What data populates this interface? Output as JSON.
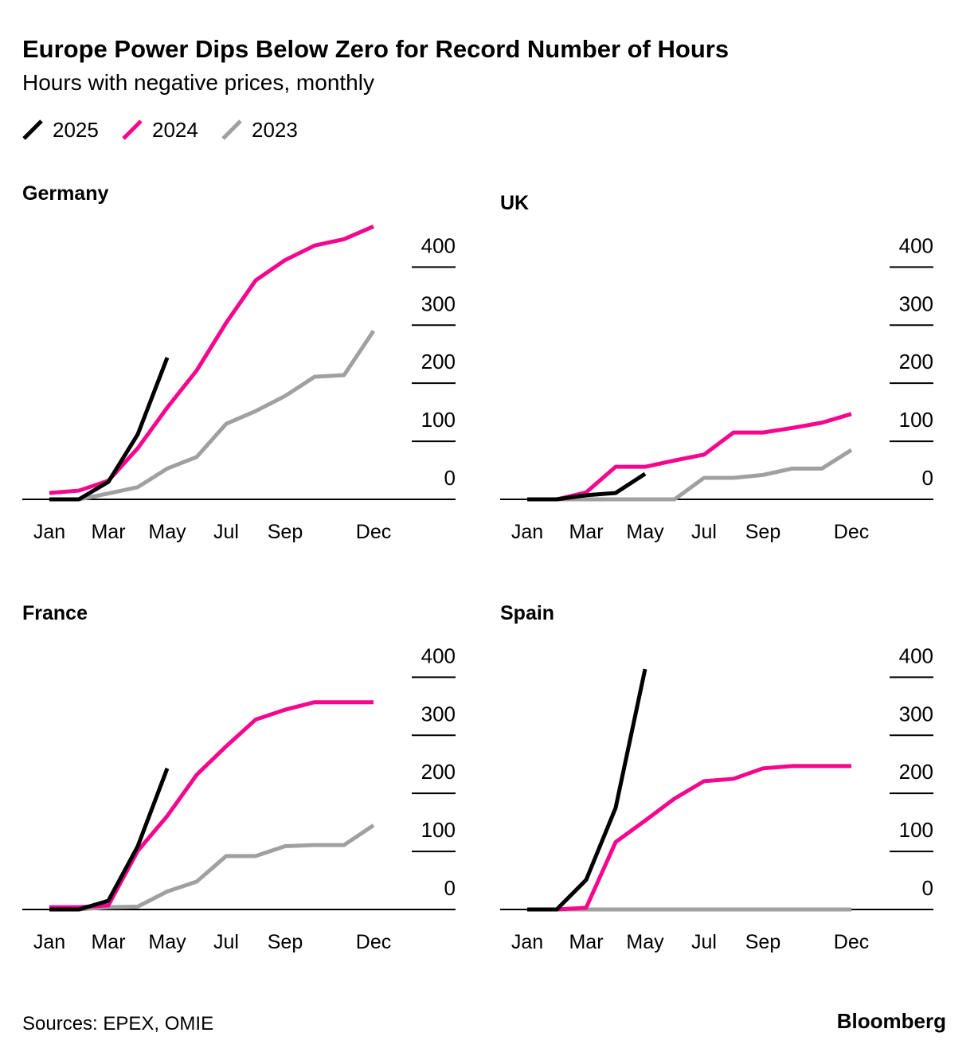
{
  "title": "Europe Power Dips Below Zero for Record Number of Hours",
  "subtitle": "Hours with negative prices, monthly",
  "source": "Sources: EPEX, OMIE",
  "brand": "Bloomberg",
  "chart_data": [
    {
      "type": "line",
      "title": "Germany",
      "categories": [
        "Jan",
        null,
        "Mar",
        null,
        "May",
        null,
        "Jul",
        null,
        "Sep",
        null,
        null,
        "Dec"
      ],
      "series": [
        {
          "name": "2025",
          "color": "#000000",
          "values": [
            0,
            0,
            30,
            112,
            244,
            null,
            null,
            null,
            null,
            null,
            null,
            null
          ]
        },
        {
          "name": "2024",
          "color": "#f5068d",
          "values": [
            11,
            15,
            32,
            88,
            158,
            222,
            304,
            377,
            412,
            437,
            448,
            470
          ]
        },
        {
          "name": "2023",
          "color": "#a0a0a0",
          "values": [
            0,
            0,
            10,
            21,
            53,
            73,
            130,
            152,
            178,
            211,
            214,
            290
          ]
        }
      ],
      "ylim": [
        0,
        480
      ],
      "yticks": [
        0,
        100,
        200,
        300,
        400
      ]
    },
    {
      "type": "line",
      "title": "UK",
      "categories": [
        "Jan",
        null,
        "Mar",
        null,
        "May",
        null,
        "Jul",
        null,
        "Sep",
        null,
        null,
        "Dec"
      ],
      "series": [
        {
          "name": "2025",
          "color": "#000000",
          "values": [
            0,
            0,
            7,
            11,
            44,
            null,
            null,
            null,
            null,
            null,
            null,
            null
          ]
        },
        {
          "name": "2024",
          "color": "#f5068d",
          "values": [
            0,
            0,
            12,
            56,
            56,
            67,
            77,
            115,
            115,
            123,
            132,
            147
          ]
        },
        {
          "name": "2023",
          "color": "#a0a0a0",
          "values": [
            0,
            0,
            0,
            0,
            0,
            0,
            37,
            37,
            42,
            53,
            53,
            85
          ]
        }
      ],
      "ylim": [
        0,
        480
      ],
      "yticks": [
        0,
        100,
        200,
        300,
        400
      ]
    },
    {
      "type": "line",
      "title": "France",
      "categories": [
        "Jan",
        null,
        "Mar",
        null,
        "May",
        null,
        "Jul",
        null,
        "Sep",
        null,
        null,
        "Dec"
      ],
      "series": [
        {
          "name": "2025",
          "color": "#000000",
          "values": [
            0,
            0,
            15,
            109,
            243,
            null,
            null,
            null,
            null,
            null,
            null,
            null
          ]
        },
        {
          "name": "2024",
          "color": "#f5068d",
          "values": [
            4,
            4,
            7,
            101,
            161,
            232,
            281,
            327,
            344,
            357,
            357,
            357
          ]
        },
        {
          "name": "2023",
          "color": "#a0a0a0",
          "values": [
            0,
            0,
            4,
            5,
            31,
            48,
            92,
            92,
            109,
            111,
            111,
            145
          ]
        }
      ],
      "ylim": [
        0,
        480
      ],
      "yticks": [
        0,
        100,
        200,
        300,
        400
      ]
    },
    {
      "type": "line",
      "title": "Spain",
      "categories": [
        "Jan",
        null,
        "Mar",
        null,
        "May",
        null,
        "Jul",
        null,
        "Sep",
        null,
        null,
        "Dec"
      ],
      "series": [
        {
          "name": "2025",
          "color": "#000000",
          "values": [
            0,
            0,
            51,
            175,
            414,
            null,
            null,
            null,
            null,
            null,
            null,
            null
          ]
        },
        {
          "name": "2024",
          "color": "#f5068d",
          "values": [
            0,
            0,
            3,
            116,
            153,
            191,
            221,
            225,
            243,
            247,
            247,
            247
          ]
        },
        {
          "name": "2023",
          "color": "#a0a0a0",
          "values": [
            0,
            0,
            0,
            0,
            0,
            0,
            0,
            0,
            0,
            0,
            0,
            0
          ]
        }
      ],
      "ylim": [
        0,
        480
      ],
      "yticks": [
        0,
        100,
        200,
        300,
        400
      ]
    }
  ]
}
